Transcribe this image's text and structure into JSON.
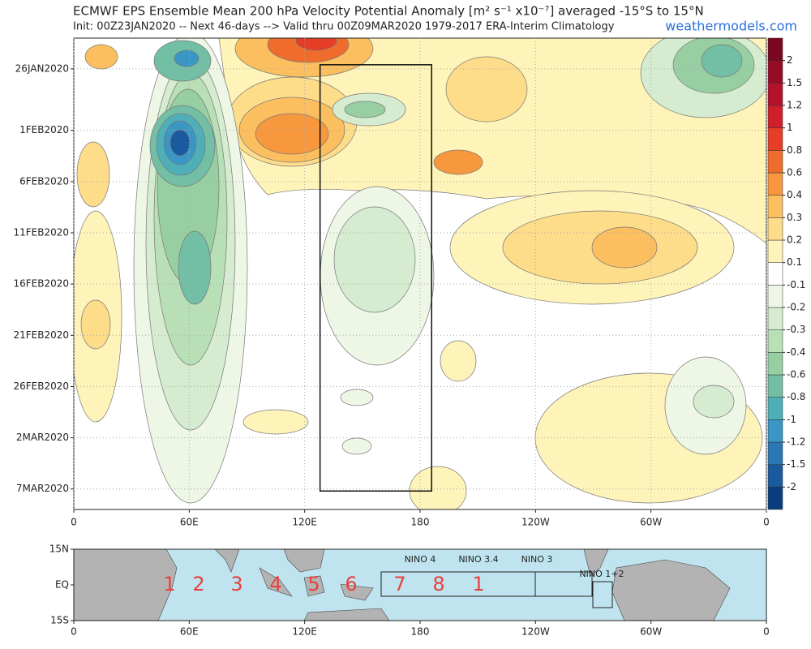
{
  "chart_data": {
    "type": "hovmoller",
    "title": "ECMWF EPS Ensemble Mean 200 hPa Velocity Potential Anomaly [m² s⁻¹ x10⁻⁷] averaged -15°S to 15°N",
    "subtitle": "Init: 00Z23JAN2020 -- Next 46-days --> Valid thru 00Z09MAR2020 1979-2017 ERA-Interim Climatology",
    "source": "weathermodels.com",
    "xlim": [
      0,
      360
    ],
    "xticks": [
      0,
      {
        "value": 60,
        "label": "60E"
      },
      {
        "value": 120,
        "label": "120E"
      },
      {
        "value": 180,
        "label": "180"
      },
      {
        "value": 240,
        "label": "120W"
      },
      {
        "value": 300,
        "label": "60W"
      },
      {
        "value": 360,
        "label": "0"
      }
    ],
    "ylim": [
      0,
      46
    ],
    "yticks": [
      {
        "value": 3,
        "label": "26JAN2020"
      },
      {
        "value": 9,
        "label": "1FEB2020"
      },
      {
        "value": 14,
        "label": "6FEB2020"
      },
      {
        "value": 19,
        "label": "11FEB2020"
      },
      {
        "value": 24,
        "label": "16FEB2020"
      },
      {
        "value": 29,
        "label": "21FEB2020"
      },
      {
        "value": 34,
        "label": "26FEB2020"
      },
      {
        "value": 39,
        "label": "2MAR2020"
      },
      {
        "value": 44,
        "label": "7MAR2020"
      }
    ],
    "grid": true,
    "box": {
      "lon": [
        128,
        186
      ],
      "day": [
        2.6,
        44.2
      ]
    },
    "colorbar": {
      "levels": [
        -2,
        -1.5,
        -1.2,
        -1,
        -0.8,
        -0.6,
        -0.4,
        -0.3,
        -0.2,
        -0.1,
        0.1,
        0.2,
        0.3,
        0.4,
        0.6,
        0.8,
        1,
        1.2,
        1.5,
        2
      ],
      "colors": [
        "#0b3d7e",
        "#1a5a9e",
        "#2a77b5",
        "#3a96c4",
        "#4fafb8",
        "#72bfa5",
        "#98cfa2",
        "#b9dfb6",
        "#d5ecd0",
        "#eef6e6",
        "#ffffff",
        "#fef3b8",
        "#fddc8a",
        "#fbbf5f",
        "#f7983f",
        "#f06c2c",
        "#e53d26",
        "#cf1f2a",
        "#b3122b",
        "#960c24",
        "#7a0620"
      ]
    },
    "map": {
      "ylim": [
        -15,
        15
      ],
      "yticks": [
        {
          "value": 15,
          "label": "15N"
        },
        {
          "value": 0,
          "label": "EQ"
        },
        {
          "value": -15,
          "label": "15S"
        }
      ],
      "phase_labels": [
        "1",
        "2",
        "3",
        "4",
        "5",
        "6",
        "7",
        "8",
        "1"
      ],
      "nino_labels": [
        "NINO 4",
        "NINO 3.4",
        "NINO 3",
        "NINO 1+2"
      ]
    }
  }
}
